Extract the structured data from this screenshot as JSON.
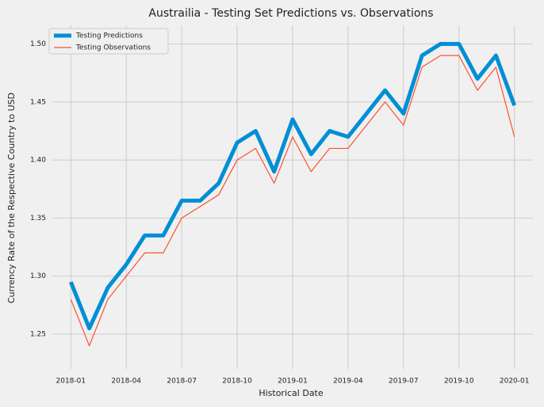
{
  "chart_data": {
    "type": "line",
    "title": "Austrailia - Testing Set Predictions vs. Observations",
    "x_label": "Historical Date",
    "y_label": "Currency Rate of the Respective Country to USD",
    "x": [
      "2018-01",
      "2018-02",
      "2018-03",
      "2018-04",
      "2018-05",
      "2018-06",
      "2018-07",
      "2018-08",
      "2018-09",
      "2018-10",
      "2018-11",
      "2018-12",
      "2019-01",
      "2019-02",
      "2019-03",
      "2019-04",
      "2019-05",
      "2019-06",
      "2019-07",
      "2019-08",
      "2019-09",
      "2019-10",
      "2019-11",
      "2019-12",
      "2020-01"
    ],
    "series": [
      {
        "name": "Testing Predictions",
        "color": "#008fd5",
        "width": 5,
        "values": [
          1.295,
          1.255,
          1.29,
          1.31,
          1.335,
          1.335,
          1.365,
          1.365,
          1.38,
          1.415,
          1.425,
          1.39,
          1.435,
          1.405,
          1.425,
          1.42,
          1.44,
          1.46,
          1.44,
          1.49,
          1.5,
          1.5,
          1.47,
          1.49,
          1.447
        ]
      },
      {
        "name": "Testing Observations",
        "color": "#fc4f30",
        "width": 1.2,
        "values": [
          1.28,
          1.24,
          1.28,
          1.3,
          1.32,
          1.32,
          1.35,
          1.36,
          1.37,
          1.4,
          1.41,
          1.38,
          1.42,
          1.39,
          1.41,
          1.41,
          1.43,
          1.45,
          1.43,
          1.48,
          1.49,
          1.49,
          1.46,
          1.48,
          1.42
        ]
      }
    ],
    "xlim": [
      "2017-12",
      "2020-02"
    ],
    "xticks": [
      "2018-01",
      "2018-04",
      "2018-07",
      "2018-10",
      "2019-01",
      "2019-04",
      "2019-07",
      "2019-10",
      "2020-01"
    ],
    "ylim": [
      1.22,
      1.516
    ],
    "yticks": [
      1.25,
      {
        "value": 1.3,
        "label": "1.30"
      },
      1.35,
      {
        "value": 1.4,
        "label": "1.40"
      },
      1.45,
      {
        "value": 1.5,
        "label": "1.50"
      }
    ],
    "grid": true,
    "legend": "upper-left"
  }
}
